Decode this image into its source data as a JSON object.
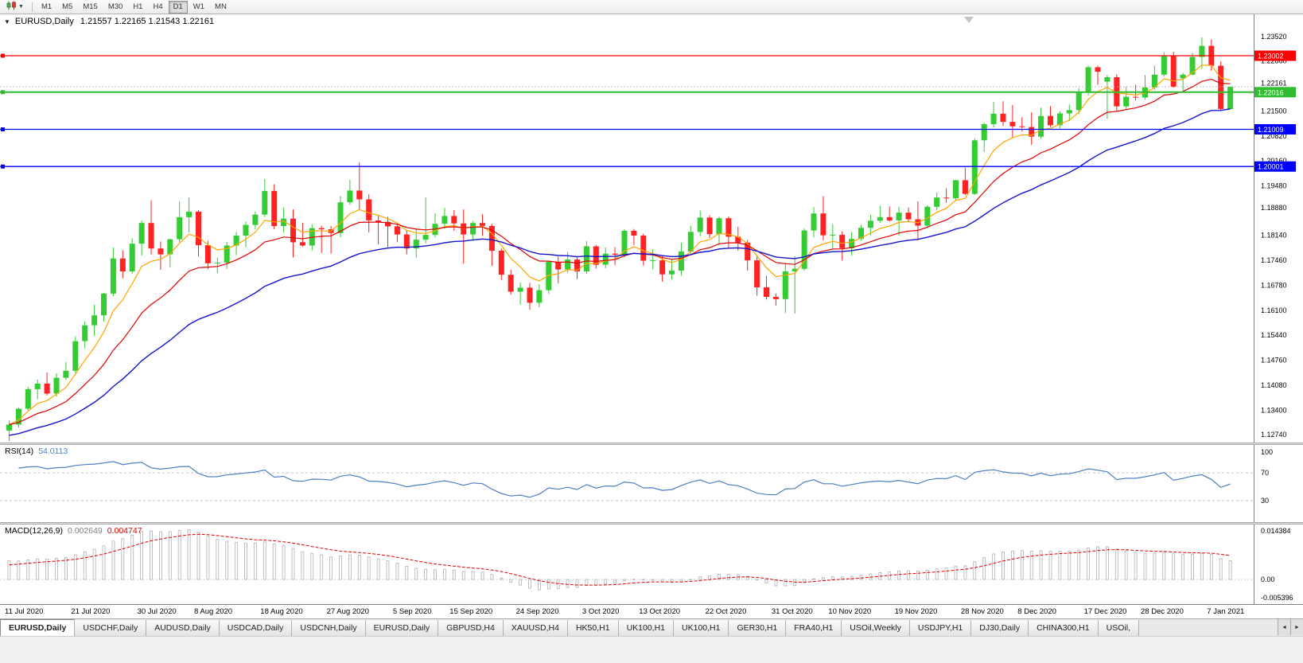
{
  "toolbar": {
    "timeframes": [
      "M1",
      "M5",
      "M15",
      "M30",
      "H1",
      "H4",
      "D1",
      "W1",
      "MN"
    ],
    "active_timeframe": "D1"
  },
  "chart": {
    "menu_arrow": "▼",
    "title": "EURUSD,Daily",
    "ohlc_text": "1.21557 1.22165 1.21543 1.22161"
  },
  "chart_data": {
    "type": "candlestick",
    "symbol": "EURUSD",
    "timeframe": "Daily",
    "ohlc_display": {
      "open": "1.21557",
      "high": "1.22165",
      "low": "1.21543",
      "close": "1.22161"
    },
    "colors": {
      "bull": "#33CC33",
      "bear": "#FF2222",
      "background": "#FFFFFF",
      "axis_border": "#808080"
    },
    "price_axis": {
      "ticks": [
        "1.23520",
        "1.22860",
        "1.21500",
        "1.20820",
        "1.20160",
        "1.19480",
        "1.18880",
        "1.18140",
        "1.17460",
        "1.16780",
        "1.16100",
        "1.15440",
        "1.14760",
        "1.14080",
        "1.13400",
        "1.12740"
      ]
    },
    "x_axis": [
      {
        "label": "11 Jul 2020",
        "bar": 0
      },
      {
        "label": "21 Jul 2020",
        "bar": 7
      },
      {
        "label": "30 Jul 2020",
        "bar": 14
      },
      {
        "label": "8 Aug 2020",
        "bar": 20
      },
      {
        "label": "18 Aug 2020",
        "bar": 27
      },
      {
        "label": "27 Aug 2020",
        "bar": 34
      },
      {
        "label": "5 Sep 2020",
        "bar": 41
      },
      {
        "label": "15 Sep 2020",
        "bar": 47
      },
      {
        "label": "24 Sep 2020",
        "bar": 54
      },
      {
        "label": "3 Oct 2020",
        "bar": 61
      },
      {
        "label": "13 Oct 2020",
        "bar": 67
      },
      {
        "label": "22 Oct 2020",
        "bar": 74
      },
      {
        "label": "31 Oct 2020",
        "bar": 81
      },
      {
        "label": "10 Nov 2020",
        "bar": 87
      },
      {
        "label": "19 Nov 2020",
        "bar": 94
      },
      {
        "label": "28 Nov 2020",
        "bar": 101
      },
      {
        "label": "8 Dec 2020",
        "bar": 107
      },
      {
        "label": "17 Dec 2020",
        "bar": 114
      },
      {
        "label": "28 Dec 2020",
        "bar": 120
      },
      {
        "label": "7 Jan 2021",
        "bar": 127
      }
    ],
    "candles": [
      [
        1.1285,
        1.1312,
        1.1257,
        1.1301
      ],
      [
        1.1301,
        1.1348,
        1.1293,
        1.1344
      ],
      [
        1.1344,
        1.1403,
        1.1339,
        1.1397
      ],
      [
        1.1397,
        1.1423,
        1.137,
        1.1412
      ],
      [
        1.1412,
        1.1442,
        1.138,
        1.1385
      ],
      [
        1.1385,
        1.144,
        1.1377,
        1.1428
      ],
      [
        1.1428,
        1.147,
        1.1422,
        1.1447
      ],
      [
        1.1447,
        1.154,
        1.144,
        1.1527
      ],
      [
        1.1527,
        1.1581,
        1.1507,
        1.157
      ],
      [
        1.157,
        1.1626,
        1.1541,
        1.1597
      ],
      [
        1.1597,
        1.1658,
        1.158,
        1.1656
      ],
      [
        1.1656,
        1.1781,
        1.1648,
        1.1751
      ],
      [
        1.1751,
        1.1773,
        1.1697,
        1.1716
      ],
      [
        1.1716,
        1.1806,
        1.171,
        1.1791
      ],
      [
        1.1791,
        1.1854,
        1.1759,
        1.1847
      ],
      [
        1.1847,
        1.1909,
        1.1762,
        1.1778
      ],
      [
        1.1778,
        1.1797,
        1.172,
        1.1762
      ],
      [
        1.1762,
        1.1804,
        1.1727,
        1.1803
      ],
      [
        1.1803,
        1.1905,
        1.1795,
        1.1863
      ],
      [
        1.1863,
        1.1916,
        1.1822,
        1.1878
      ],
      [
        1.1878,
        1.1882,
        1.1756,
        1.1787
      ],
      [
        1.1787,
        1.1799,
        1.1722,
        1.1738
      ],
      [
        1.1738,
        1.1754,
        1.1711,
        1.174
      ],
      [
        1.174,
        1.1796,
        1.1723,
        1.1786
      ],
      [
        1.1786,
        1.1823,
        1.176,
        1.1813
      ],
      [
        1.1813,
        1.1851,
        1.1782,
        1.1842
      ],
      [
        1.1842,
        1.1878,
        1.183,
        1.187
      ],
      [
        1.187,
        1.1966,
        1.1863,
        1.1934
      ],
      [
        1.1934,
        1.1952,
        1.183,
        1.1839
      ],
      [
        1.1839,
        1.1889,
        1.1821,
        1.1859
      ],
      [
        1.1859,
        1.1884,
        1.1754,
        1.1795
      ],
      [
        1.1795,
        1.1848,
        1.1783,
        1.1786
      ],
      [
        1.1786,
        1.1844,
        1.1773,
        1.1833
      ],
      [
        1.1833,
        1.184,
        1.1766,
        1.183
      ],
      [
        1.183,
        1.1839,
        1.1764,
        1.182
      ],
      [
        1.182,
        1.192,
        1.1808,
        1.1903
      ],
      [
        1.1903,
        1.1964,
        1.1897,
        1.1935
      ],
      [
        1.1935,
        1.2011,
        1.1883,
        1.1911
      ],
      [
        1.1911,
        1.1925,
        1.1822,
        1.1854
      ],
      [
        1.1854,
        1.1868,
        1.1789,
        1.185
      ],
      [
        1.185,
        1.1864,
        1.1781,
        1.1838
      ],
      [
        1.1838,
        1.1848,
        1.1795,
        1.1816
      ],
      [
        1.1816,
        1.1828,
        1.1762,
        1.1778
      ],
      [
        1.1778,
        1.1834,
        1.1753,
        1.1802
      ],
      [
        1.1802,
        1.1917,
        1.1792,
        1.1815
      ],
      [
        1.1815,
        1.1874,
        1.1808,
        1.1845
      ],
      [
        1.1845,
        1.1888,
        1.1832,
        1.1866
      ],
      [
        1.1866,
        1.1882,
        1.1826,
        1.1846
      ],
      [
        1.1846,
        1.1884,
        1.1737,
        1.1816
      ],
      [
        1.1816,
        1.1852,
        1.1799,
        1.1847
      ],
      [
        1.1847,
        1.1871,
        1.1812,
        1.1839
      ],
      [
        1.1839,
        1.1845,
        1.1731,
        1.1772
      ],
      [
        1.1772,
        1.1778,
        1.1693,
        1.1707
      ],
      [
        1.1707,
        1.172,
        1.1653,
        1.1661
      ],
      [
        1.1661,
        1.1686,
        1.1626,
        1.1672
      ],
      [
        1.1672,
        1.1685,
        1.1612,
        1.1631
      ],
      [
        1.1631,
        1.1681,
        1.1619,
        1.1665
      ],
      [
        1.1665,
        1.1745,
        1.1655,
        1.1742
      ],
      [
        1.1742,
        1.1756,
        1.1684,
        1.1721
      ],
      [
        1.1721,
        1.1769,
        1.1712,
        1.1748
      ],
      [
        1.1748,
        1.1754,
        1.1695,
        1.1716
      ],
      [
        1.1716,
        1.1798,
        1.1709,
        1.1784
      ],
      [
        1.1784,
        1.1788,
        1.1724,
        1.1734
      ],
      [
        1.1734,
        1.1781,
        1.1725,
        1.1764
      ],
      [
        1.1764,
        1.1782,
        1.1733,
        1.1761
      ],
      [
        1.1761,
        1.1831,
        1.1753,
        1.1826
      ],
      [
        1.1826,
        1.1831,
        1.1787,
        1.1813
      ],
      [
        1.1813,
        1.1818,
        1.1732,
        1.1745
      ],
      [
        1.1745,
        1.1777,
        1.1722,
        1.1746
      ],
      [
        1.1746,
        1.1758,
        1.1688,
        1.1708
      ],
      [
        1.1708,
        1.1748,
        1.1694,
        1.1718
      ],
      [
        1.1718,
        1.1794,
        1.1704,
        1.177
      ],
      [
        1.177,
        1.184,
        1.1761,
        1.1823
      ],
      [
        1.1823,
        1.1881,
        1.1811,
        1.1862
      ],
      [
        1.1862,
        1.1868,
        1.1806,
        1.1817
      ],
      [
        1.1817,
        1.1864,
        1.1787,
        1.186
      ],
      [
        1.186,
        1.1865,
        1.178,
        1.181
      ],
      [
        1.181,
        1.1837,
        1.1772,
        1.1794
      ],
      [
        1.1794,
        1.1801,
        1.1718,
        1.1746
      ],
      [
        1.1746,
        1.1759,
        1.165,
        1.1673
      ],
      [
        1.1673,
        1.1704,
        1.164,
        1.1647
      ],
      [
        1.1647,
        1.1656,
        1.1623,
        1.1641
      ],
      [
        1.1641,
        1.174,
        1.1603,
        1.1716
      ],
      [
        1.1716,
        1.1758,
        1.1602,
        1.1723
      ],
      [
        1.1723,
        1.1832,
        1.1718,
        1.1827
      ],
      [
        1.1827,
        1.189,
        1.1808,
        1.1873
      ],
      [
        1.1873,
        1.192,
        1.18,
        1.1814
      ],
      [
        1.1814,
        1.1844,
        1.1779,
        1.1815
      ],
      [
        1.1815,
        1.1824,
        1.1745,
        1.1779
      ],
      [
        1.1779,
        1.1823,
        1.1759,
        1.1804
      ],
      [
        1.1804,
        1.1842,
        1.1799,
        1.1834
      ],
      [
        1.1834,
        1.1869,
        1.1814,
        1.1853
      ],
      [
        1.1853,
        1.1894,
        1.1847,
        1.1863
      ],
      [
        1.1863,
        1.1892,
        1.1851,
        1.1854
      ],
      [
        1.1854,
        1.1891,
        1.1813,
        1.1875
      ],
      [
        1.1875,
        1.1889,
        1.1849,
        1.1857
      ],
      [
        1.1857,
        1.1906,
        1.18,
        1.184
      ],
      [
        1.184,
        1.1895,
        1.1833,
        1.1891
      ],
      [
        1.1891,
        1.193,
        1.1881,
        1.1916
      ],
      [
        1.1916,
        1.1941,
        1.1902,
        1.1914
      ],
      [
        1.1914,
        1.1964,
        1.191,
        1.1963
      ],
      [
        1.1963,
        1.1997,
        1.1923,
        1.1926
      ],
      [
        1.1926,
        1.2076,
        1.1923,
        1.2071
      ],
      [
        1.2071,
        1.2119,
        1.204,
        1.2115
      ],
      [
        1.2115,
        1.2175,
        1.2106,
        1.2143
      ],
      [
        1.2143,
        1.2177,
        1.211,
        1.2121
      ],
      [
        1.2121,
        1.2167,
        1.2079,
        1.2109
      ],
      [
        1.2109,
        1.2134,
        1.2095,
        1.2107
      ],
      [
        1.2107,
        1.2147,
        1.2059,
        1.2081
      ],
      [
        1.2081,
        1.216,
        1.2076,
        1.2137
      ],
      [
        1.2137,
        1.2164,
        1.2107,
        1.2112
      ],
      [
        1.2112,
        1.215,
        1.2103,
        1.2144
      ],
      [
        1.2144,
        1.2168,
        1.2123,
        1.2153
      ],
      [
        1.2153,
        1.2212,
        1.2142,
        1.22
      ],
      [
        1.22,
        1.2273,
        1.2193,
        1.2269
      ],
      [
        1.2269,
        1.2273,
        1.2221,
        1.2257
      ],
      [
        1.223,
        1.2248,
        1.2129,
        1.2242
      ],
      [
        1.2242,
        1.225,
        1.2151,
        1.2163
      ],
      [
        1.2163,
        1.2216,
        1.2154,
        1.2189
      ],
      [
        1.2189,
        1.2222,
        1.2179,
        1.2187
      ],
      [
        1.2187,
        1.2248,
        1.2181,
        1.2214
      ],
      [
        1.2214,
        1.2273,
        1.2208,
        1.2249
      ],
      [
        1.2249,
        1.231,
        1.2244,
        1.2299
      ],
      [
        1.2299,
        1.2311,
        1.2214,
        1.2216
      ],
      [
        1.2239,
        1.2254,
        1.2206,
        1.2249
      ],
      [
        1.2249,
        1.2308,
        1.2247,
        1.2297
      ],
      [
        1.2297,
        1.235,
        1.2265,
        1.2327
      ],
      [
        1.2327,
        1.2344,
        1.226,
        1.2273
      ],
      [
        1.2273,
        1.2285,
        1.2151,
        1.2156
      ],
      [
        1.21557,
        1.22165,
        1.21543,
        1.22161
      ]
    ],
    "moving_averages": [
      {
        "period": 6,
        "method": "ema",
        "color": "#FFA500",
        "width": 1.2
      },
      {
        "period": 14,
        "method": "ema",
        "color": "#E00000",
        "width": 1.2
      },
      {
        "period": 30,
        "method": "ema",
        "color": "#1414CC",
        "width": 1.4,
        "seed": 1.127
      }
    ],
    "horizontal_lines": [
      {
        "price": 1.23002,
        "label": "1.23002",
        "color": "#FF0000",
        "width": 1.2
      },
      {
        "price": 1.22016,
        "label": "1.22016",
        "color": "#2FBE2F",
        "width": 2
      },
      {
        "price": 1.21009,
        "label": "1.21009",
        "color": "#0000FF",
        "width": 1.3
      },
      {
        "price": 1.20001,
        "label": "1.20001",
        "color": "#0000FF",
        "width": 1.3
      }
    ],
    "current_price": {
      "value": 1.22161,
      "label": "1.22161"
    },
    "rsi": {
      "name": "RSI(14)",
      "value": "54.0113",
      "levels": [
        100,
        70,
        30
      ],
      "color": "#4E7FC4"
    },
    "macd": {
      "name": "MACD(12,26,9)",
      "values": [
        "0.002649",
        "0.004747"
      ],
      "axis": [
        "0.014384",
        "0.00",
        "-0.005396"
      ],
      "max": 0.014384,
      "min": -0.005396,
      "histogram_color": "#B0B0B0",
      "signal_color": "#E00000"
    }
  },
  "tabs": {
    "items": [
      "EURUSD,Daily",
      "USDCHF,Daily",
      "AUDUSD,Daily",
      "USDCAD,Daily",
      "USDCNH,Daily",
      "EURUSD,Daily",
      "GBPUSD,H4",
      "XAUUSD,H4",
      "HK50,H1",
      "UK100,H1",
      "UK100,H1",
      "GER30,H1",
      "FRA40,H1",
      "USOil,Weekly",
      "USDJPY,H1",
      "DJ30,Daily",
      "CHINA300,H1",
      "USOil,"
    ],
    "active_index": 0,
    "scroll_left": "◄",
    "scroll_right": "►"
  }
}
